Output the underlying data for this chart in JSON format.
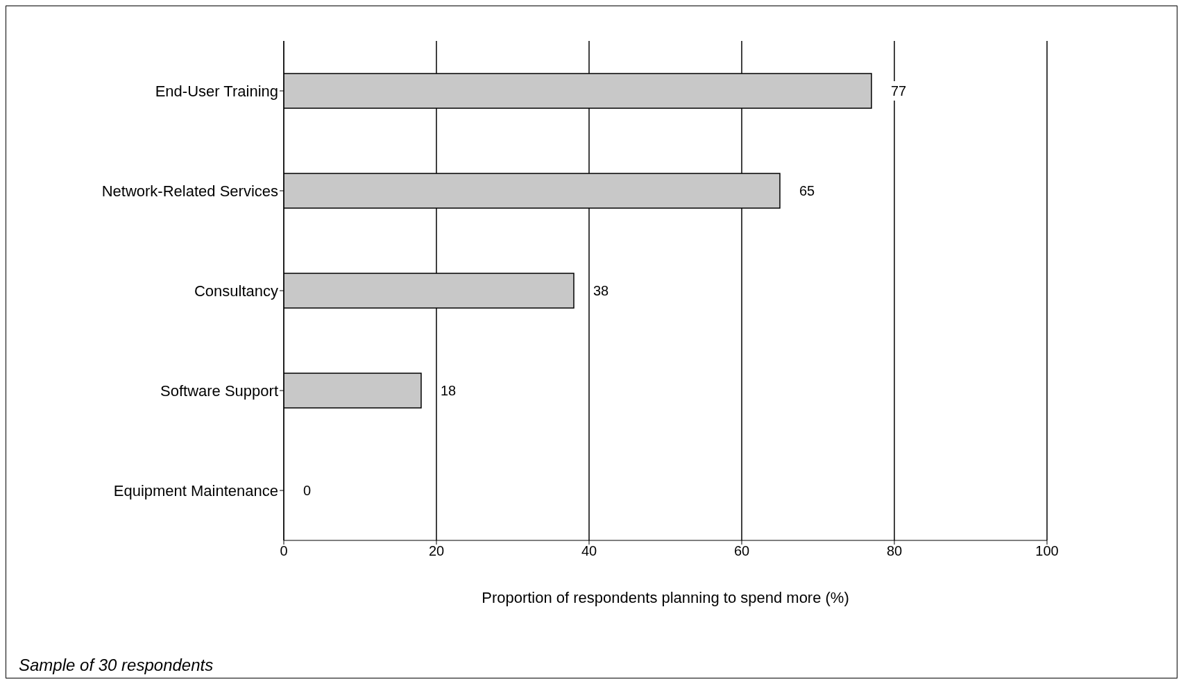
{
  "chart_data": {
    "type": "bar",
    "orientation": "horizontal",
    "xlabel": "Proportion of respondents planning to spend more (%)",
    "categories": [
      "End-User Training",
      "Network-Related Services",
      "Consultancy",
      "Software Support",
      "Equipment Maintenance"
    ],
    "values": [
      77,
      65,
      38,
      18,
      0
    ],
    "color": "#c8c8c8",
    "xlim": [
      0,
      100
    ],
    "xticks": [
      0,
      20,
      40,
      60,
      80,
      100
    ],
    "grid": "x",
    "data_labels": true,
    "annotations": [
      "Sample of 30 respondents"
    ]
  }
}
